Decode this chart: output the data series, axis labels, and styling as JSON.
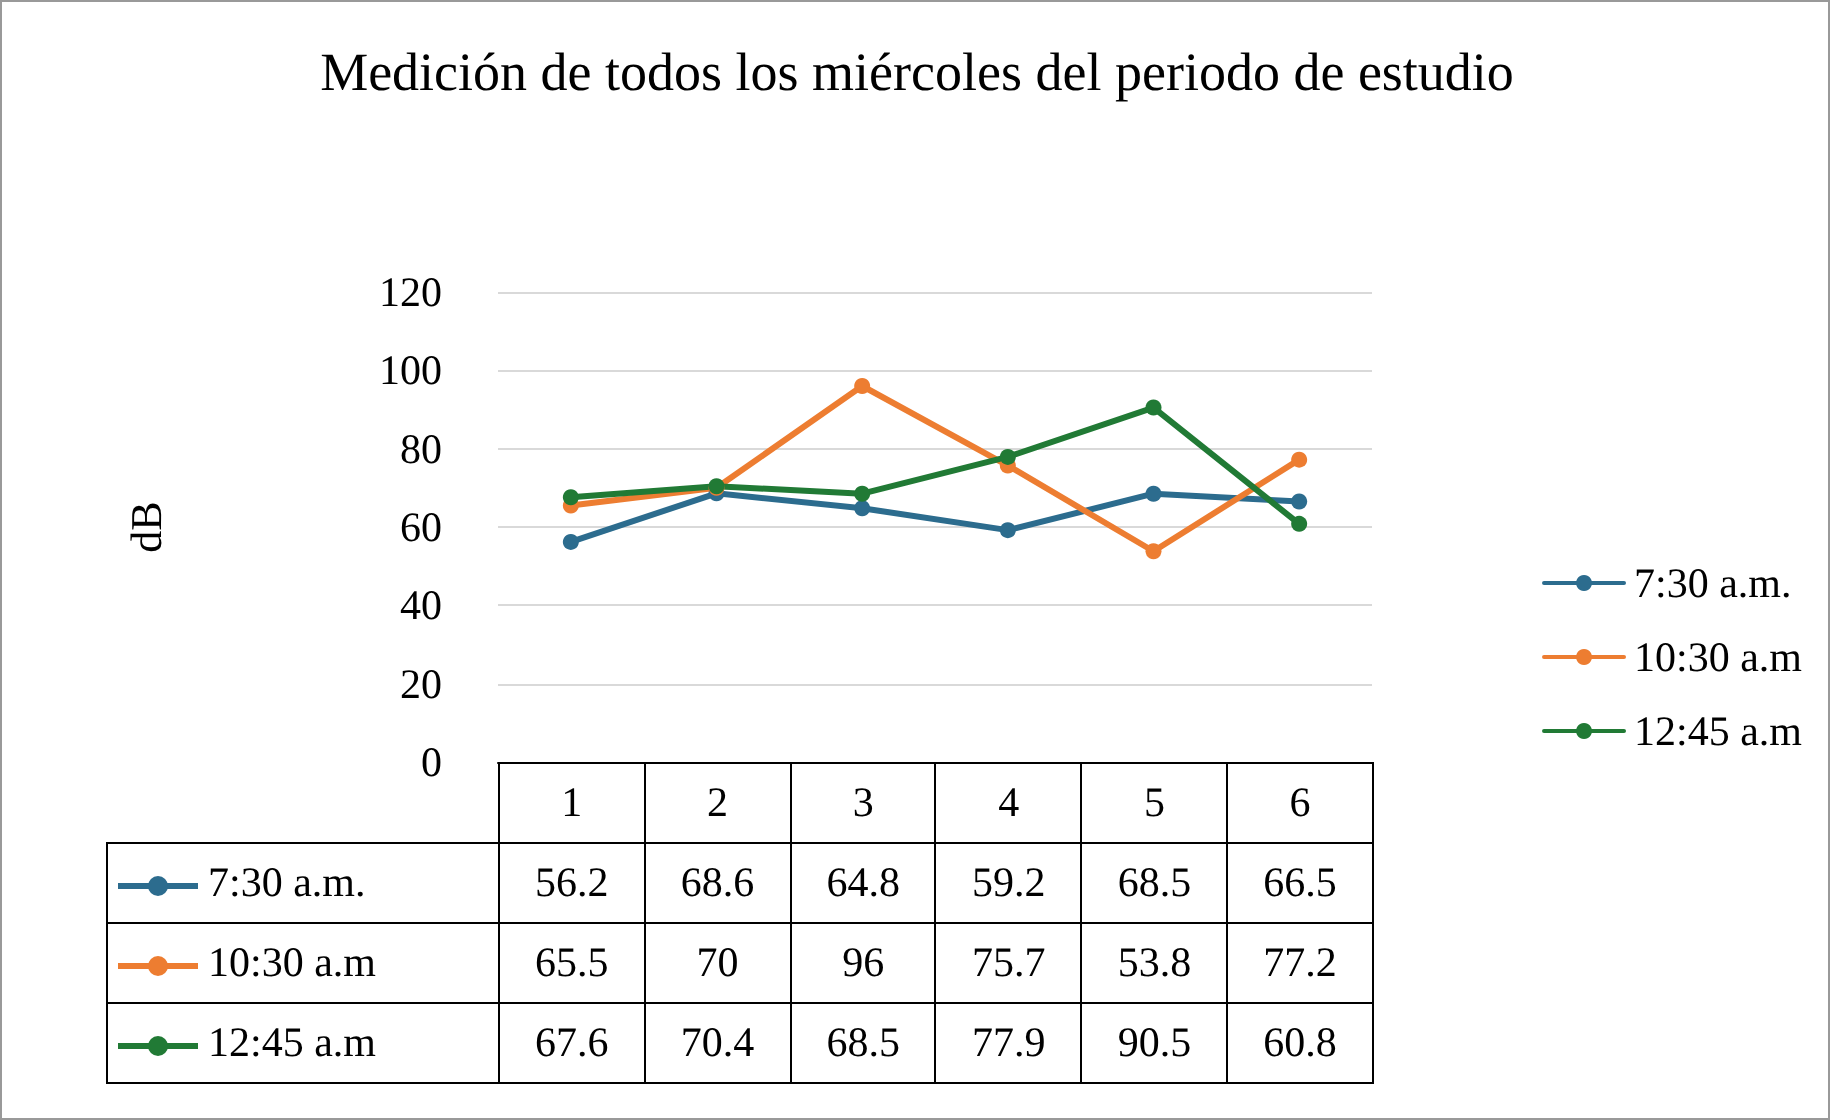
{
  "chart_data": {
    "type": "line",
    "title": "Medición de todos los miércoles del periodo de estudio",
    "ylabel": "dB",
    "categories": [
      "1",
      "2",
      "3",
      "4",
      "5",
      "6"
    ],
    "series": [
      {
        "name": "7:30 a.m.",
        "color": "#2c6c8e",
        "values": [
          56.2,
          68.6,
          64.8,
          59.2,
          68.5,
          66.5
        ]
      },
      {
        "name": "10:30 a.m",
        "color": "#ed7d31",
        "values": [
          65.5,
          70,
          96,
          75.7,
          53.8,
          77.2
        ]
      },
      {
        "name": "12:45 a.m",
        "color": "#217a35",
        "values": [
          67.6,
          70.4,
          68.5,
          77.9,
          90.5,
          60.8
        ]
      }
    ],
    "ylim": [
      0,
      120
    ],
    "yticks": [
      0,
      20,
      40,
      60,
      80,
      100,
      120
    ],
    "grid": "y",
    "legend": "right",
    "marker": "circle",
    "line_style": "solid",
    "data_labels": true
  }
}
